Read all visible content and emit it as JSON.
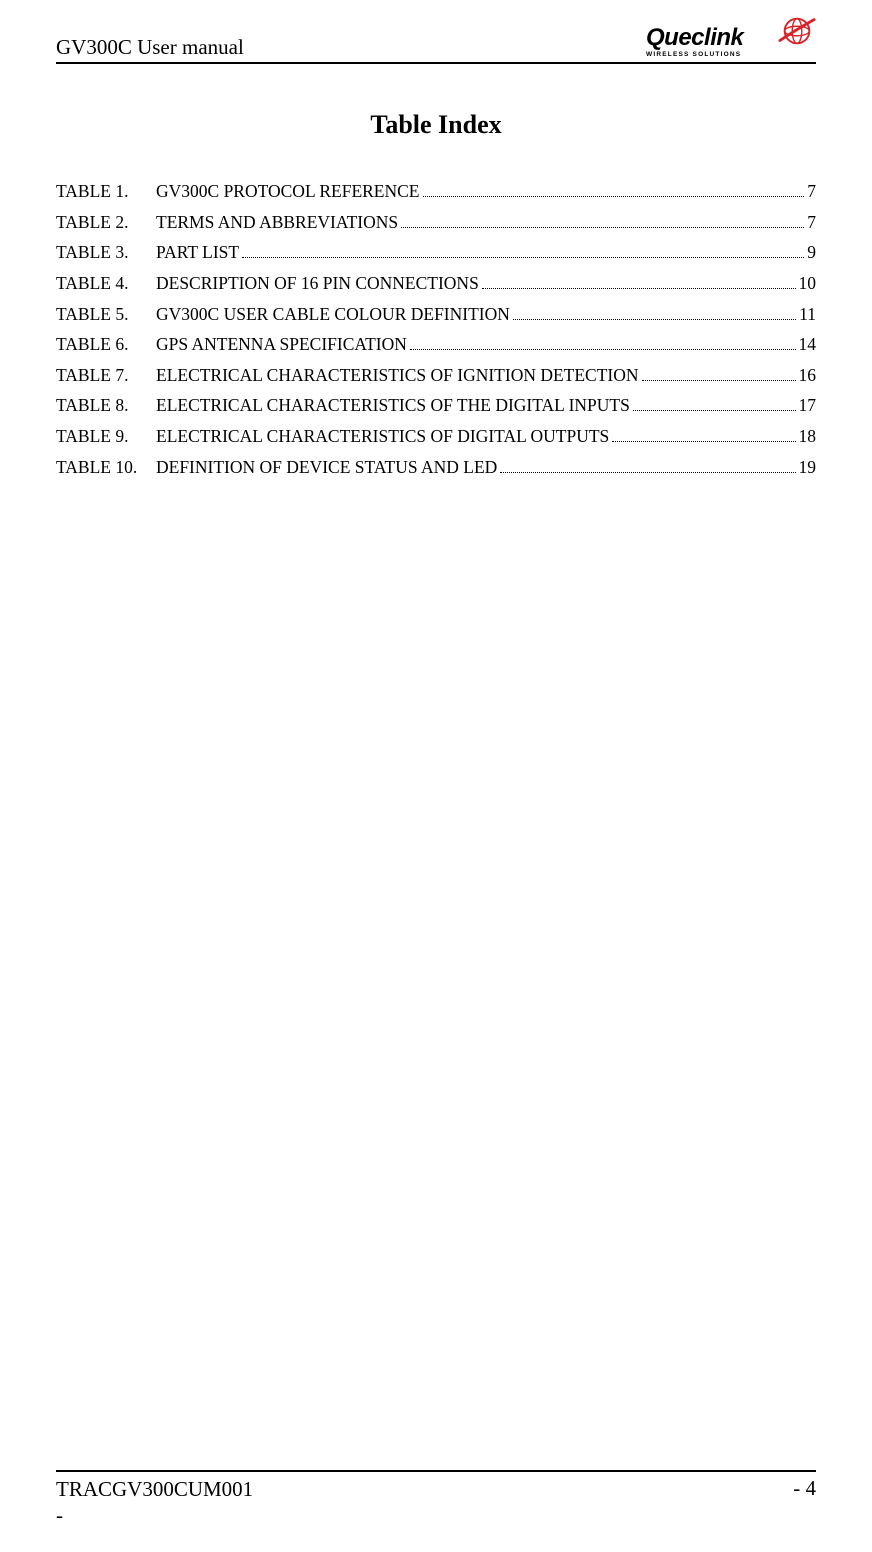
{
  "header": {
    "title": "GV300C User manual",
    "logo": {
      "name": "Queclink",
      "tagline": "WIRELESS SOLUTIONS",
      "mark_color": "#d8232a",
      "text_color": "#1a1a1a"
    }
  },
  "section": {
    "heading": "Table Index"
  },
  "toc": [
    {
      "label": "TABLE 1.",
      "title": "GV300C PROTOCOL REFERENCE",
      "page": "7"
    },
    {
      "label": "TABLE 2.",
      "title": "TERMS AND ABBREVIATIONS",
      "page": "7"
    },
    {
      "label": "TABLE 3.",
      "title": "PART LIST",
      "page": "9"
    },
    {
      "label": "TABLE 4.",
      "title": "DESCRIPTION OF 16 PIN CONNECTIONS",
      "page": "10"
    },
    {
      "label": "TABLE 5.",
      "title": "GV300C USER CABLE COLOUR DEFINITION",
      "page": "11"
    },
    {
      "label": "TABLE 6.",
      "title": "GPS ANTENNA SPECIFICATION",
      "page": "14"
    },
    {
      "label": "TABLE 7.",
      "title": "ELECTRICAL CHARACTERISTICS OF IGNITION DETECTION ",
      "page": "16"
    },
    {
      "label": "TABLE 8.",
      "title": "ELECTRICAL CHARACTERISTICS OF THE DIGITAL INPUTS ",
      "page": "17"
    },
    {
      "label": "TABLE 9.",
      "title": "ELECTRICAL CHARACTERISTICS OF DIGITAL OUTPUTS",
      "page": "18"
    },
    {
      "label": "TABLE 10.",
      "title": "DEFINITION OF DEVICE STATUS AND LED ",
      "page": "19"
    }
  ],
  "footer": {
    "doc_id_line1": "TRACGV300CUM001",
    "doc_id_line2": "-",
    "page_label": "- 4"
  },
  "colors": {
    "background": "#ffffff",
    "text": "#000000",
    "rule": "#000000"
  }
}
